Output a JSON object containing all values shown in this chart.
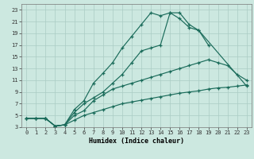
{
  "xlabel": "Humidex (Indice chaleur)",
  "xlim": [
    -0.5,
    23.5
  ],
  "ylim": [
    3,
    24
  ],
  "xticks": [
    0,
    1,
    2,
    3,
    4,
    5,
    6,
    7,
    8,
    9,
    10,
    11,
    12,
    13,
    14,
    15,
    16,
    17,
    18,
    19,
    20,
    21,
    22,
    23
  ],
  "yticks": [
    3,
    5,
    7,
    9,
    11,
    13,
    15,
    17,
    19,
    21,
    23
  ],
  "background_color": "#cce8e0",
  "grid_color": "#aaccC4",
  "line_color": "#1a6b5a",
  "lines": [
    {
      "x": [
        0,
        1,
        2,
        3,
        4,
        5,
        6,
        7,
        8,
        9,
        10,
        11,
        12,
        13,
        14,
        15,
        16,
        17,
        18,
        23
      ],
      "y": [
        4.5,
        4.5,
        4.5,
        3.2,
        3.4,
        6.0,
        7.5,
        10.5,
        12.2,
        14.0,
        16.5,
        18.5,
        20.5,
        22.5,
        22.0,
        22.5,
        21.5,
        20.0,
        19.5,
        10.0
      ]
    },
    {
      "x": [
        2,
        3,
        4,
        5,
        6,
        7,
        8,
        9,
        10,
        11,
        12,
        13,
        14,
        15,
        16,
        17,
        18,
        19
      ],
      "y": [
        4.5,
        3.2,
        3.4,
        5.5,
        7.0,
        8.0,
        9.0,
        10.5,
        12.0,
        14.0,
        16.0,
        16.5,
        17.0,
        22.5,
        22.5,
        20.5,
        19.5,
        17.0
      ]
    },
    {
      "x": [
        0,
        1,
        2,
        3,
        4,
        5,
        6,
        7,
        8,
        9,
        10,
        11,
        12,
        13,
        14,
        15,
        16,
        17,
        18,
        19,
        20,
        21,
        22,
        23
      ],
      "y": [
        4.5,
        4.5,
        4.5,
        3.2,
        3.4,
        5.0,
        5.8,
        7.5,
        8.5,
        9.5,
        10.0,
        10.5,
        11.0,
        11.5,
        12.0,
        12.5,
        13.0,
        13.5,
        14.0,
        14.5,
        14.0,
        13.5,
        12.0,
        11.0
      ]
    },
    {
      "x": [
        0,
        1,
        2,
        3,
        4,
        5,
        6,
        7,
        8,
        9,
        10,
        11,
        12,
        13,
        14,
        15,
        16,
        17,
        18,
        19,
        20,
        21,
        22,
        23
      ],
      "y": [
        4.5,
        4.5,
        4.5,
        3.2,
        3.4,
        4.2,
        5.0,
        5.5,
        6.0,
        6.5,
        7.0,
        7.3,
        7.6,
        7.9,
        8.2,
        8.5,
        8.8,
        9.0,
        9.2,
        9.5,
        9.7,
        9.8,
        10.0,
        10.2
      ]
    }
  ]
}
